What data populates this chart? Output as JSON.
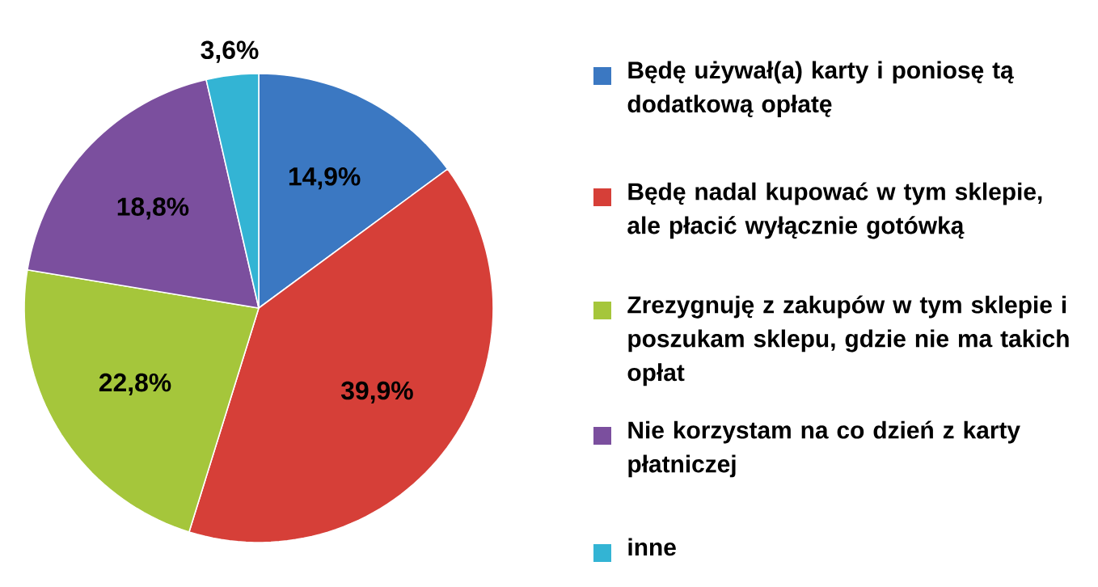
{
  "chart_data": {
    "type": "pie",
    "categories": [
      "Będę używał(a) karty i poniosę tą dodatkową opłatę",
      "Będę nadal kupować w tym sklepie, ale płacić wyłącznie gotówką",
      "Zrezygnuję z zakupów w tym sklepie i poszukam sklepu, gdzie nie ma takich opłat",
      "Nie korzystam na co dzień z karty płatniczej",
      "inne"
    ],
    "values": [
      14.9,
      39.9,
      22.8,
      18.8,
      3.6
    ],
    "colors": [
      "#3b78c2",
      "#d63f38",
      "#a5c63b",
      "#7b4f9e",
      "#33b4d4"
    ],
    "value_labels": [
      "14,9%",
      "39,9%",
      "22,8%",
      "18,8%",
      "3,6%"
    ],
    "legend": "right"
  }
}
